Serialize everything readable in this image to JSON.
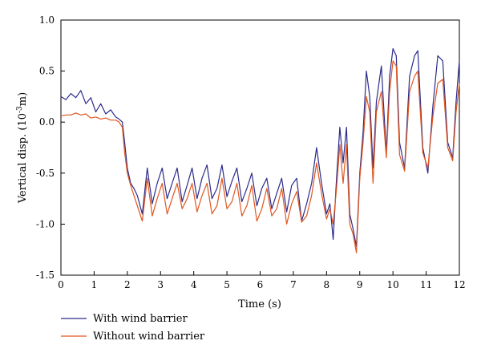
{
  "chart_data": {
    "type": "line",
    "title": "",
    "xlabel": "Time (s)",
    "ylabel": "Vertical disp. (10",
    "ylabel_exp": "-3",
    "ylabel_unit": "m)",
    "xlim": [
      0,
      12
    ],
    "ylim": [
      -1.5,
      1.0
    ],
    "x_ticks": [
      "0",
      "1",
      "2",
      "3",
      "4",
      "5",
      "6",
      "7",
      "8",
      "9",
      "10",
      "11",
      "12"
    ],
    "y_ticks": [
      "-1.5",
      "-1.0",
      "-0.5",
      "0.0",
      "0.5",
      "1.0"
    ],
    "grid": false,
    "legend_position": "bottom-left",
    "series": [
      {
        "name": "With wind barrier",
        "color": "#2b2b8c",
        "x": [
          0,
          0.15,
          0.3,
          0.45,
          0.6,
          0.75,
          0.9,
          1.05,
          1.2,
          1.35,
          1.5,
          1.65,
          1.75,
          1.85,
          1.92,
          2.0,
          2.1,
          2.2,
          2.3,
          2.45,
          2.6,
          2.75,
          2.9,
          3.05,
          3.2,
          3.35,
          3.5,
          3.65,
          3.8,
          3.95,
          4.1,
          4.25,
          4.4,
          4.55,
          4.7,
          4.85,
          5.0,
          5.15,
          5.3,
          5.45,
          5.6,
          5.75,
          5.9,
          6.05,
          6.2,
          6.35,
          6.5,
          6.65,
          6.8,
          6.95,
          7.1,
          7.25,
          7.4,
          7.55,
          7.7,
          7.85,
          8.0,
          8.1,
          8.2,
          8.3,
          8.4,
          8.5,
          8.6,
          8.7,
          8.8,
          8.9,
          9.0,
          9.1,
          9.2,
          9.3,
          9.4,
          9.5,
          9.65,
          9.8,
          9.9,
          10.0,
          10.1,
          10.2,
          10.35,
          10.5,
          10.65,
          10.75,
          10.9,
          11.05,
          11.2,
          11.35,
          11.5,
          11.65,
          11.8,
          11.9,
          12.0
        ],
        "y": [
          0.25,
          0.22,
          0.28,
          0.24,
          0.31,
          0.18,
          0.24,
          0.1,
          0.18,
          0.08,
          0.12,
          0.05,
          0.03,
          0.0,
          -0.2,
          -0.45,
          -0.6,
          -0.65,
          -0.72,
          -0.9,
          -0.45,
          -0.8,
          -0.6,
          -0.45,
          -0.75,
          -0.6,
          -0.45,
          -0.78,
          -0.62,
          -0.45,
          -0.75,
          -0.55,
          -0.42,
          -0.75,
          -0.65,
          -0.42,
          -0.73,
          -0.58,
          -0.45,
          -0.78,
          -0.65,
          -0.5,
          -0.82,
          -0.65,
          -0.55,
          -0.85,
          -0.7,
          -0.55,
          -0.88,
          -0.62,
          -0.55,
          -0.97,
          -0.8,
          -0.6,
          -0.25,
          -0.6,
          -0.9,
          -0.8,
          -1.15,
          -0.55,
          -0.05,
          -0.4,
          -0.05,
          -0.9,
          -1.05,
          -1.22,
          -0.5,
          -0.1,
          0.5,
          0.25,
          -0.45,
          0.2,
          0.55,
          -0.3,
          0.45,
          0.72,
          0.65,
          -0.2,
          -0.45,
          0.45,
          0.65,
          0.7,
          -0.25,
          -0.5,
          0.15,
          0.65,
          0.6,
          -0.2,
          -0.35,
          0.2,
          0.6
        ]
      },
      {
        "name": "Without wind barrier",
        "color": "#e0561f",
        "x": [
          0,
          0.15,
          0.3,
          0.45,
          0.6,
          0.75,
          0.9,
          1.05,
          1.2,
          1.35,
          1.5,
          1.65,
          1.75,
          1.85,
          1.92,
          2.0,
          2.1,
          2.2,
          2.3,
          2.45,
          2.6,
          2.75,
          2.9,
          3.05,
          3.2,
          3.35,
          3.5,
          3.65,
          3.8,
          3.95,
          4.1,
          4.25,
          4.4,
          4.55,
          4.7,
          4.85,
          5.0,
          5.15,
          5.3,
          5.45,
          5.6,
          5.75,
          5.9,
          6.05,
          6.2,
          6.35,
          6.5,
          6.65,
          6.8,
          6.95,
          7.1,
          7.25,
          7.4,
          7.55,
          7.7,
          7.85,
          8.0,
          8.1,
          8.2,
          8.3,
          8.4,
          8.5,
          8.6,
          8.7,
          8.8,
          8.9,
          9.0,
          9.1,
          9.2,
          9.3,
          9.4,
          9.5,
          9.65,
          9.8,
          9.9,
          10.0,
          10.1,
          10.2,
          10.35,
          10.5,
          10.65,
          10.75,
          10.9,
          11.05,
          11.2,
          11.35,
          11.5,
          11.65,
          11.8,
          11.9,
          12.0
        ],
        "y": [
          0.06,
          0.07,
          0.07,
          0.09,
          0.07,
          0.08,
          0.04,
          0.05,
          0.03,
          0.04,
          0.02,
          0.02,
          0.0,
          -0.05,
          -0.3,
          -0.5,
          -0.62,
          -0.72,
          -0.82,
          -0.97,
          -0.55,
          -0.92,
          -0.75,
          -0.6,
          -0.9,
          -0.75,
          -0.6,
          -0.85,
          -0.75,
          -0.6,
          -0.88,
          -0.72,
          -0.6,
          -0.9,
          -0.82,
          -0.55,
          -0.85,
          -0.78,
          -0.6,
          -0.92,
          -0.82,
          -0.62,
          -0.97,
          -0.85,
          -0.65,
          -0.92,
          -0.85,
          -0.65,
          -1.0,
          -0.8,
          -0.68,
          -0.98,
          -0.92,
          -0.72,
          -0.4,
          -0.7,
          -0.95,
          -0.85,
          -1.0,
          -0.65,
          -0.22,
          -0.6,
          -0.22,
          -1.0,
          -1.1,
          -1.28,
          -0.55,
          -0.2,
          0.25,
          0.1,
          -0.6,
          0.1,
          0.3,
          -0.35,
          0.3,
          0.6,
          0.55,
          -0.32,
          -0.48,
          0.3,
          0.45,
          0.5,
          -0.3,
          -0.45,
          0.05,
          0.38,
          0.42,
          -0.25,
          -0.38,
          0.1,
          0.38
        ]
      }
    ]
  }
}
